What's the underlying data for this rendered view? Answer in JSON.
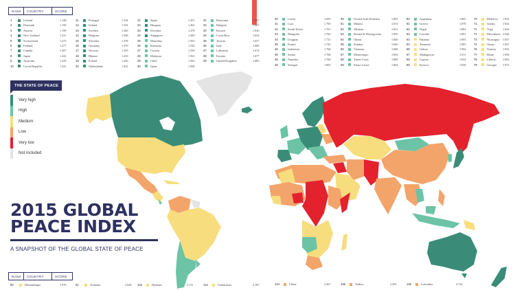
{
  "colors": {
    "very_high": "#3a8c78",
    "high": "#6cc3a5",
    "medium": "#f7dd7e",
    "low": "#f3a46a",
    "very_low": "#e3222e",
    "not_included": "#e4e4e4",
    "navy": "#2e3160",
    "accent_bar": "#e9574a"
  },
  "table_header": {
    "rank": "RANK",
    "country": "COUNTRY",
    "score": "SCORE"
  },
  "top_columns": [
    {
      "rows": [
        {
          "rank": "1",
          "country": "Iceland",
          "score": "1.148",
          "level": "very_high"
        },
        {
          "rank": "2",
          "country": "Denmark",
          "score": "1.150",
          "level": "very_high"
        },
        {
          "rank": "3",
          "country": "Austria",
          "score": "1.198",
          "level": "very_high"
        },
        {
          "rank": "4",
          "country": "New Zealand",
          "score": "1.221",
          "level": "very_high"
        },
        {
          "rank": "5",
          "country": "Switzerland",
          "score": "1.275",
          "level": "very_high"
        },
        {
          "rank": "6",
          "country": "Finland",
          "score": "1.277",
          "level": "very_high"
        },
        {
          "rank": "7",
          "country": "Canada",
          "score": "1.287",
          "level": "very_high"
        },
        {
          "rank": "8",
          "country": "Japan",
          "score": "1.322",
          "level": "very_high"
        },
        {
          "rank": "9",
          "country": "Australia",
          "score": "1.329",
          "level": "very_high"
        },
        {
          "rank": "10",
          "country": "Czech Republic",
          "score": "1.341",
          "level": "very_high"
        }
      ]
    },
    {
      "rows": [
        {
          "rank": "11",
          "country": "Portugal",
          "score": "1.344",
          "level": "very_high"
        },
        {
          "rank": "12",
          "country": "Ireland",
          "score": "1.354",
          "level": "very_high"
        },
        {
          "rank": "13",
          "country": "Sweden",
          "score": "1.360",
          "level": "very_high"
        },
        {
          "rank": "14",
          "country": "Belgium",
          "score": "1.368",
          "level": "very_high"
        },
        {
          "rank": "15",
          "country": "Slovenia",
          "score": "1.378",
          "level": "very_high"
        },
        {
          "rank": "16",
          "country": "Germany",
          "score": "1.379",
          "level": "very_high"
        },
        {
          "rank": "17",
          "country": "Norway",
          "score": "1.393",
          "level": "very_high"
        },
        {
          "rank": "18",
          "country": "Bhutan",
          "score": "1.416",
          "level": "very_high"
        },
        {
          "rank": "19",
          "country": "Poland",
          "score": "1.430",
          "level": "very_high"
        },
        {
          "rank": "20",
          "country": "Netherlands",
          "score": "1.432",
          "level": "very_high"
        }
      ]
    },
    {
      "rows": [
        {
          "rank": "21",
          "country": "Spain",
          "score": "1.451",
          "level": "very_high"
        },
        {
          "rank": "22",
          "country": "Hungary",
          "score": "1.463",
          "level": "very_high"
        },
        {
          "rank": "23",
          "country": "Slovakia",
          "score": "1.478",
          "level": "very_high"
        },
        {
          "rank": "24",
          "country": "Singapore",
          "score": "1.490",
          "level": "very_high"
        },
        {
          "rank": "25",
          "country": "Mauritius",
          "score": "1.503",
          "level": "high"
        },
        {
          "rank": "26",
          "country": "Romania",
          "score": "1.542",
          "level": "high"
        },
        {
          "rank": "27",
          "country": "Croatia",
          "score": "1.550",
          "level": "high"
        },
        {
          "rank": "28",
          "country": "Malaysia",
          "score": "1.561",
          "level": "high"
        },
        {
          "rank": "29",
          "country": "Chile",
          "score": "1.563",
          "level": "high"
        },
        {
          "rank": "30",
          "country": "Qatar",
          "score": "1.568",
          "level": "high"
        }
      ]
    },
    {
      "rows": [
        {
          "rank": "31",
          "country": "Botswana",
          "score": "1.597",
          "level": "high"
        },
        {
          "rank": "32",
          "country": "Bulgaria",
          "score": "1.607",
          "level": "high"
        },
        {
          "rank": "33",
          "country": "Kuwait",
          "score": "1.626",
          "level": "high"
        },
        {
          "rank": "34",
          "country": "Costa Rica",
          "score": "1.654",
          "level": "high"
        },
        {
          "rank": "35",
          "country": "Taiwan",
          "score": "1.657",
          "level": "high"
        },
        {
          "rank": "36",
          "country": "Italy",
          "score": "1.669",
          "level": "high"
        },
        {
          "rank": "37",
          "country": "Lithuania",
          "score": "1.674",
          "level": "high"
        },
        {
          "rank": "38",
          "country": "Estonia",
          "score": "1.677",
          "level": "high"
        },
        {
          "rank": "39",
          "country": "United Kingdom",
          "score": "1.685",
          "level": "high"
        }
      ]
    },
    {
      "rows": [
        {
          "rank": "40",
          "country": "Latvia",
          "score": "1.695",
          "level": "high"
        },
        {
          "rank": "41",
          "country": "Laos",
          "score": "1.700",
          "level": "high"
        },
        {
          "rank": "42",
          "country": "South Korea",
          "score": "1.701",
          "level": "high"
        },
        {
          "rank": "43",
          "country": "Mongolia",
          "score": "1.706",
          "level": "high"
        },
        {
          "rank": "44",
          "country": "Uruguay",
          "score": "1.721",
          "level": "high"
        },
        {
          "rank": "45",
          "country": "France",
          "score": "1.742",
          "level": "high"
        },
        {
          "rank": "46",
          "country": "Indonesia",
          "score": "1.768",
          "level": "high"
        },
        {
          "rank": "46",
          "country": "Serbia",
          "score": "1.768",
          "level": "high"
        },
        {
          "rank": "48",
          "country": "Namibia",
          "score": "1.784",
          "level": "high"
        },
        {
          "rank": "49",
          "country": "Senegal",
          "score": "1.805",
          "level": "high"
        }
      ]
    },
    {
      "rows": [
        {
          "rank": "49",
          "country": "United Arab Emirates",
          "score": "1.805",
          "level": "high"
        },
        {
          "rank": "51",
          "country": "Malawi",
          "score": "1.814",
          "level": "high"
        },
        {
          "rank": "52",
          "country": "Albania",
          "score": "1.821",
          "level": "high"
        },
        {
          "rank": "53",
          "country": "Bosnia & Herzegovina",
          "score": "1.839",
          "level": "high"
        },
        {
          "rank": "54",
          "country": "Ghana",
          "score": "1.840",
          "level": "high"
        },
        {
          "rank": "55",
          "country": "Zambia",
          "score": "1.846",
          "level": "high"
        },
        {
          "rank": "56",
          "country": "Vietnam",
          "score": "1.848",
          "level": "high"
        },
        {
          "rank": "57",
          "country": "Montenegro",
          "score": "1.854",
          "level": "high"
        },
        {
          "rank": "58",
          "country": "Timor-Leste",
          "score": "1.860",
          "level": "high"
        },
        {
          "rank": "59",
          "country": "Sierra Leone",
          "score": "1.864",
          "level": "high"
        }
      ]
    },
    {
      "rows": [
        {
          "rank": "60",
          "country": "Argentina",
          "score": "1.865",
          "level": "high"
        },
        {
          "rank": "61",
          "country": "Greece",
          "score": "1.878",
          "level": "high"
        },
        {
          "rank": "62",
          "country": "Nepal",
          "score": "1.882",
          "level": "high"
        },
        {
          "rank": "63",
          "country": "Lesotho",
          "score": "1.891",
          "level": "high"
        },
        {
          "rank": "64",
          "country": "Panama",
          "score": "1.903",
          "level": "medium"
        },
        {
          "rank": "64",
          "country": "Tanzania",
          "score": "1.903",
          "level": "medium"
        },
        {
          "rank": "66",
          "country": "Gabon",
          "score": "1.904",
          "level": "medium"
        },
        {
          "rank": "67",
          "country": "Madagascar",
          "score": "1.911",
          "level": "medium"
        },
        {
          "rank": "68",
          "country": "Cyprus",
          "score": "1.924",
          "level": "medium"
        },
        {
          "rank": "69",
          "country": "Kosovo",
          "score": "1.938",
          "level": "medium"
        }
      ]
    },
    {
      "rows": [
        {
          "rank": "70",
          "country": "Moldova",
          "score": "1.942",
          "level": "medium"
        },
        {
          "rank": "71",
          "country": "Jordan",
          "score": "1.944",
          "level": "medium"
        },
        {
          "rank": "71",
          "country": "Togo",
          "score": "1.944",
          "level": "medium"
        },
        {
          "rank": "71",
          "country": "Macedonia",
          "score": "1.944",
          "level": "medium"
        },
        {
          "rank": "74",
          "country": "Nicaragua",
          "score": "1.947",
          "level": "medium"
        },
        {
          "rank": "74",
          "country": "Oman",
          "score": "1.947",
          "level": "medium"
        },
        {
          "rank": "76",
          "country": "Tunisia",
          "score": "1.952",
          "level": "medium"
        },
        {
          "rank": "77",
          "country": "Benin",
          "score": "1.958",
          "level": "medium"
        },
        {
          "rank": "78",
          "country": "Liberia",
          "score": "1.963",
          "level": "medium"
        },
        {
          "rank": "79",
          "country": "Georgia",
          "score": "1.973",
          "level": "medium"
        }
      ]
    }
  ],
  "bottom_rows": [
    {
      "rank": "80",
      "country": "Mozambique",
      "score": "1.976",
      "level": "medium"
    },
    {
      "rank": "91",
      "country": "Armenia",
      "score": "2.028",
      "level": "medium"
    },
    {
      "rank": "102",
      "country": "Djibouti",
      "score": "2.113",
      "level": "medium"
    },
    {
      "rank": "113",
      "country": "Uzbekistan",
      "score": "2.187",
      "level": "medium"
    },
    {
      "rank": "124",
      "country": "China",
      "score": "2.267",
      "level": "low"
    },
    {
      "rank": "135",
      "country": "Turkey",
      "score": "2.363",
      "level": "low"
    },
    {
      "rank": "146",
      "country": "Colombia",
      "score": "2.720",
      "level": "low"
    }
  ],
  "legend": {
    "title": "THE STATE OF PEACE",
    "items": [
      {
        "label": "Very high",
        "level": "very_high"
      },
      {
        "label": "High",
        "level": "high"
      },
      {
        "label": "Medium",
        "level": "medium"
      },
      {
        "label": "Low",
        "level": "low"
      },
      {
        "label": "Very low",
        "level": "very_low"
      },
      {
        "label": "Not included",
        "level": "not_included"
      }
    ]
  },
  "title": {
    "line1": "2015 GLOBAL",
    "line2": "PEACE INDEX",
    "subtitle": "A SNAPSHOT OF THE GLOBAL STATE OF PEACE"
  }
}
